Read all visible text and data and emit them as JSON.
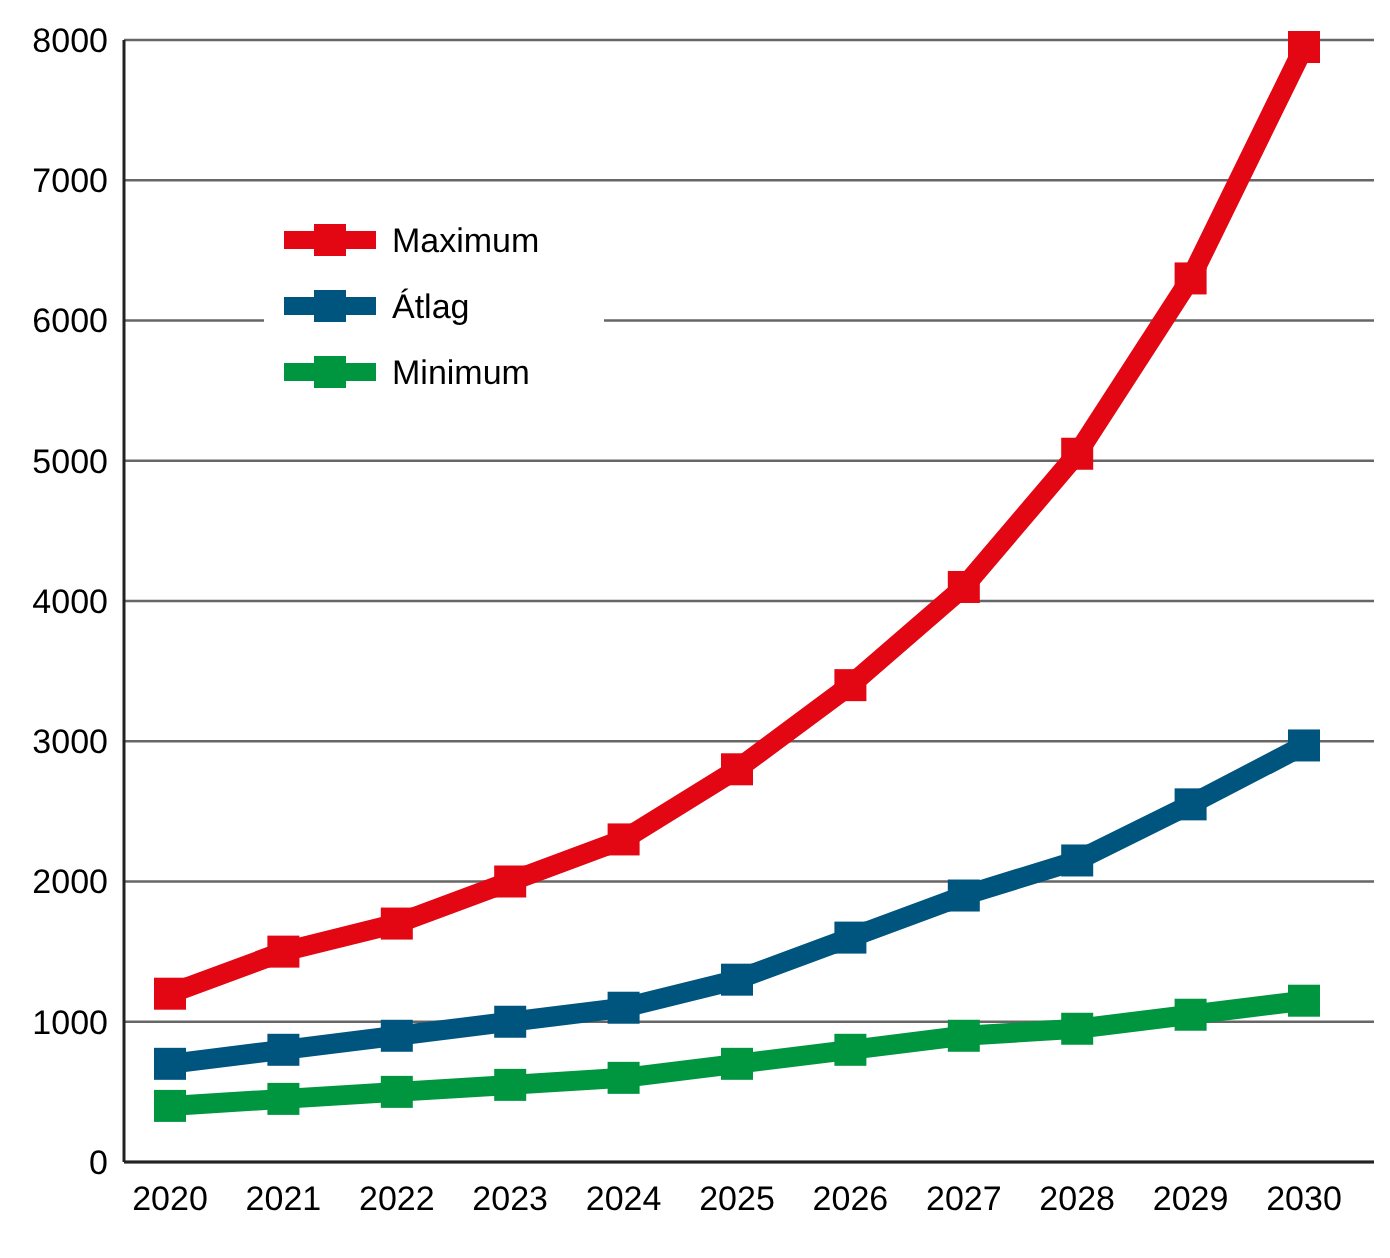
{
  "chart_data": {
    "type": "line",
    "categories": [
      "2020",
      "2021",
      "2022",
      "2023",
      "2024",
      "2025",
      "2026",
      "2027",
      "2028",
      "2029",
      "2030"
    ],
    "series": [
      {
        "name": "Maximum",
        "color": "#e30613",
        "values": [
          1200,
          1500,
          1700,
          2000,
          2300,
          2800,
          3400,
          4100,
          5050,
          6300,
          7950
        ]
      },
      {
        "name": "Átlag",
        "color": "#00557f",
        "values": [
          700,
          800,
          900,
          1000,
          1100,
          1300,
          1600,
          1900,
          2150,
          2550,
          2970
        ]
      },
      {
        "name": "Minimum",
        "color": "#009640",
        "values": [
          400,
          450,
          500,
          550,
          600,
          700,
          800,
          900,
          950,
          1050,
          1150
        ]
      }
    ],
    "ylim": [
      0,
      8000
    ],
    "yticks": [
      0,
      1000,
      2000,
      3000,
      4000,
      5000,
      6000,
      7000,
      8000
    ],
    "grid": "y",
    "legend": "top left",
    "marker": "square",
    "line_style": "solid"
  }
}
